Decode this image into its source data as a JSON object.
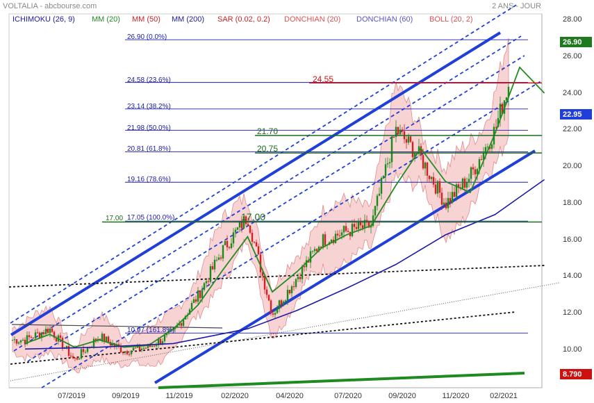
{
  "header": {
    "title": "VOLTALIA - abcbourse.com",
    "period": "2 ANS - JOUR"
  },
  "legend": [
    {
      "label": "ICHIMOKU (26, 9)",
      "color": "#1a1aa8"
    },
    {
      "label": "MM (20)",
      "color": "#228B22"
    },
    {
      "label": "MM (50)",
      "color": "#cc2222"
    },
    {
      "label": "MM (200)",
      "color": "#1a1aa8"
    },
    {
      "label": "SAR (0.02, 0.2)",
      "color": "#cc2222"
    },
    {
      "label": "DONCHIAN (20)",
      "color": "#e05050"
    },
    {
      "label": "DONCHIAN (60)",
      "color": "#5555cc"
    },
    {
      "label": "BOLL (20, 2)",
      "color": "#e05050"
    }
  ],
  "price_tags": {
    "last": "26.90",
    "current": "22.95",
    "low": "8.790"
  },
  "annotations": {
    "level_2455": "24.55",
    "level_2170": "21.70",
    "level_2075": "20.75",
    "level_1700_left": "17.00",
    "level_1700_mid": "17.00"
  },
  "colors": {
    "candle_up": "#1a8a1a",
    "candle_down": "#d42020",
    "boll_fill": "#f6c4c4",
    "fib": "#1a1aa8",
    "channel": "#1f3fd8",
    "green_level": "#1a6b1a",
    "red_level": "#cc1111"
  },
  "chart_data": {
    "type": "candlestick",
    "ylim": [
      8.0,
      28.0
    ],
    "y_ticks": [
      "28.00",
      "26.00",
      "24.00",
      "22.00",
      "20.00",
      "18.00",
      "16.00",
      "14.00",
      "12.00",
      "10.00"
    ],
    "x_ticks": [
      "07/2019",
      "09/2019",
      "11/2019",
      "02/2020",
      "04/2020",
      "07/2020",
      "09/2020",
      "11/2020",
      "02/2021"
    ],
    "fibonacci": [
      {
        "label": "26.90 (0.0%)",
        "value": 26.9
      },
      {
        "label": "24.58 (23.6%)",
        "value": 24.58
      },
      {
        "label": "23.14 (38.2%)",
        "value": 23.14
      },
      {
        "label": "21.98 (50.0%)",
        "value": 21.98
      },
      {
        "label": "20.81 (61.8%)",
        "value": 20.81
      },
      {
        "label": "19.16 (78.6%)",
        "value": 19.16
      },
      {
        "label": "17.05 (100.0%)",
        "value": 17.05
      },
      {
        "label": "10.97 (161.8%)",
        "value": 10.97
      }
    ],
    "horizontal_levels": [
      24.55,
      21.7,
      20.75,
      17.0
    ],
    "ma_series": [
      {
        "name": "MM (20)",
        "color": "#228B22",
        "points": [
          [
            "2019-05",
            10.4
          ],
          [
            "2019-06",
            10.9
          ],
          [
            "2019-07",
            10.2
          ],
          [
            "2019-08",
            10.6
          ],
          [
            "2019-09",
            10.2
          ],
          [
            "2019-10",
            10.3
          ],
          [
            "2019-11",
            11.2
          ],
          [
            "2019-12",
            12.5
          ],
          [
            "2020-01",
            14.4
          ],
          [
            "2020-02",
            16.2
          ],
          [
            "2020-03",
            13.2
          ],
          [
            "2020-04",
            14.3
          ],
          [
            "2020-05",
            15.6
          ],
          [
            "2020-06",
            16.3
          ],
          [
            "2020-07",
            16.8
          ],
          [
            "2020-08",
            19.0
          ],
          [
            "2020-09",
            21.0
          ],
          [
            "2020-10",
            19.2
          ],
          [
            "2020-11",
            18.6
          ],
          [
            "2020-12",
            21.8
          ],
          [
            "2021-01",
            25.4
          ],
          [
            "2021-02",
            24.0
          ]
        ]
      },
      {
        "name": "MM (200)",
        "color": "#1a1aa8",
        "points": [
          [
            "2019-05",
            10.1
          ],
          [
            "2019-08",
            10.2
          ],
          [
            "2019-11",
            10.4
          ],
          [
            "2020-02",
            11.2
          ],
          [
            "2020-04",
            12.2
          ],
          [
            "2020-06",
            13.4
          ],
          [
            "2020-08",
            14.7
          ],
          [
            "2020-10",
            16.3
          ],
          [
            "2020-12",
            17.4
          ],
          [
            "2021-02",
            19.3
          ]
        ]
      }
    ],
    "price_path": [
      [
        "2019-05",
        10.6
      ],
      [
        "2019-06",
        11.2
      ],
      [
        "2019-07",
        9.5
      ],
      [
        "2019-08",
        10.8
      ],
      [
        "2019-09",
        10.0
      ],
      [
        "2019-10",
        10.2
      ],
      [
        "2019-11",
        11.0
      ],
      [
        "2019-12",
        13.0
      ],
      [
        "2020-01",
        15.5
      ],
      [
        "2020-02",
        17.3
      ],
      [
        "2020-03",
        12.0
      ],
      [
        "2020-04",
        14.0
      ],
      [
        "2020-05",
        16.0
      ],
      [
        "2020-06",
        16.5
      ],
      [
        "2020-07",
        16.8
      ],
      [
        "2020-08",
        22.0
      ],
      [
        "2020-09",
        20.5
      ],
      [
        "2020-10",
        18.0
      ],
      [
        "2020-11",
        19.5
      ],
      [
        "2020-12",
        22.0
      ],
      [
        "2021-01",
        26.5
      ],
      [
        "2021-02",
        22.95
      ]
    ]
  }
}
